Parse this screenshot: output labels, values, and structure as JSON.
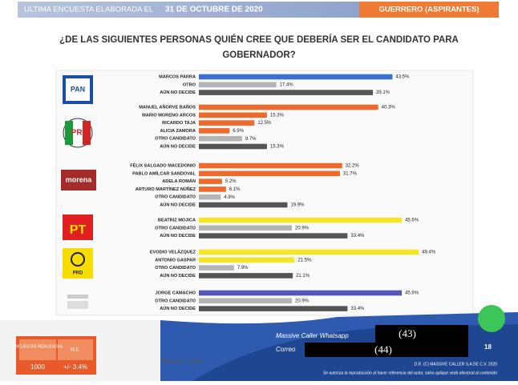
{
  "header": {
    "left": "ULTIMA ENCUESTA ELABORADA EL",
    "date": "31 DE OCTUBRE DE 2020",
    "right": "GUERRERO (ASPIRANTES)"
  },
  "chart_data": {
    "type": "bar",
    "orientation": "horizontal",
    "title": "¿DE LAS SIGUIENTES PERSONAS QUIÉN CREE QUE DEBERÍA SER EL CANDIDATO PARA GOBERNADOR?",
    "groups": [
      {
        "party": "PAN",
        "categories": [
          "MARCOS PARRA",
          "OTRO",
          "AÚN NO DECIDE"
        ],
        "values": [
          43.5,
          17.4,
          39.1
        ],
        "value_labels": [
          "43.5%",
          "17.4%",
          "39.1%"
        ],
        "colors": [
          "#3b6fd4",
          "#b5b5b5",
          "#555555"
        ]
      },
      {
        "party": "PRI",
        "categories": [
          "MANUEL AÑORVE BAÑOS",
          "MARIO MORENO ARCOS",
          "RICARDO TAJA",
          "ALICIA ZAMORA",
          "OTRO CANDIDATO",
          "AÚN NO DECIDE"
        ],
        "values": [
          40.3,
          15.3,
          12.5,
          6.9,
          9.7,
          15.3
        ],
        "value_labels": [
          "40.3%",
          "15.3%",
          "12.5%",
          "6.9%",
          "9.7%",
          "15.3%"
        ],
        "colors": [
          "#ee6a2c",
          "#ee6a2c",
          "#ee6a2c",
          "#ee6a2c",
          "#b5b5b5",
          "#555555"
        ]
      },
      {
        "party": "morena",
        "categories": [
          "FÉLIX SALGADO MACEDONIO",
          "PABLO AMÍLCAR SANDOVAL",
          "ADELA ROMÁN",
          "ARTURO MARTÍNEZ NÚÑEZ",
          "OTRO CANDIDATO",
          "AÚN NO DECIDE"
        ],
        "values": [
          32.2,
          31.7,
          5.2,
          6.1,
          4.9,
          19.9
        ],
        "value_labels": [
          "32.2%",
          "31.7%",
          "5.2%",
          "6.1%",
          "4.9%",
          "19.9%"
        ],
        "colors": [
          "#ee6a2c",
          "#ee6a2c",
          "#ee6a2c",
          "#ee6a2c",
          "#b5b5b5",
          "#555555"
        ]
      },
      {
        "party": "PT",
        "categories": [
          "BEATRIZ MOJICA",
          "OTRO CANDIDATO",
          "AÚN NO DECIDE"
        ],
        "values": [
          45.6,
          20.9,
          33.4
        ],
        "value_labels": [
          "45.6%",
          "20.9%",
          "33.4%"
        ],
        "colors": [
          "#f4e626",
          "#b5b5b5",
          "#555555"
        ]
      },
      {
        "party": "PRD",
        "categories": [
          "EVODIO VELÁZQUEZ",
          "ANTONIO GASPAR",
          "OTRO CANDIDATO",
          "AÚN NO DECIDE"
        ],
        "values": [
          49.4,
          21.5,
          7.9,
          21.1
        ],
        "value_labels": [
          "49.4%",
          "21.5%",
          "7.9%",
          "21.1%"
        ],
        "colors": [
          "#f4e626",
          "#f4e626",
          "#b5b5b5",
          "#555555"
        ]
      },
      {
        "party": null,
        "categories": [
          "JORGE CAMACHO",
          "OTRO CANDIDATO",
          "AÚN NO DECIDE"
        ],
        "values": [
          45.6,
          20.9,
          33.4
        ],
        "value_labels": [
          "45.6%",
          "20.9%",
          "33.4%"
        ],
        "colors": [
          "#5356b8",
          "#b5b5b5",
          "#555555"
        ]
      }
    ]
  },
  "footer": {
    "surveys_label": "ENCUESTAS REALIZADAS",
    "me_label": "M.E.",
    "surveys": "1000",
    "me": "+/- 3.4%",
    "brand": "Massive Caller",
    "whatsapp": "Massive Caller Whatsapp",
    "email": "Correo",
    "phone1": "(43)",
    "phone2": "(44)",
    "page": "18",
    "copyright": "D.R. (C) MASSIVE CALLER S.A DE C.V. 2020",
    "notice": "Se autoriza la reproducción al hacer referencia del autor, salvo aplique veda electoral al contenido"
  }
}
